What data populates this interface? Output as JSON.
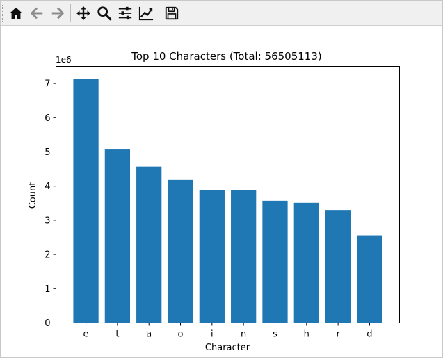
{
  "toolbar": {
    "buttons": [
      {
        "name": "home-icon"
      },
      {
        "name": "back-arrow-icon"
      },
      {
        "name": "forward-arrow-icon"
      },
      {
        "name": "pan-move-icon"
      },
      {
        "name": "zoom-magnifier-icon"
      },
      {
        "name": "configure-subplots-icon"
      },
      {
        "name": "edit-axis-line-icon"
      },
      {
        "name": "save-floppy-icon"
      }
    ]
  },
  "chart_data": {
    "type": "bar",
    "title": "Top 10 Characters (Total: 56505113)",
    "xlabel": "Character",
    "ylabel": "Count",
    "y_offset_label": "1e6",
    "categories": [
      "e",
      "t",
      "a",
      "o",
      "i",
      "n",
      "s",
      "h",
      "r",
      "d"
    ],
    "values": [
      7130000,
      5070000,
      4570000,
      4180000,
      3880000,
      3880000,
      3570000,
      3510000,
      3300000,
      2560000
    ],
    "ylim": [
      0,
      7500000
    ],
    "yticks": [
      0,
      1000000,
      2000000,
      3000000,
      4000000,
      5000000,
      6000000,
      7000000
    ],
    "ytick_labels": [
      "0",
      "1",
      "2",
      "3",
      "4",
      "5",
      "6",
      "7"
    ],
    "bar_color": "#1f77b4",
    "grid": false,
    "legend": "none"
  }
}
